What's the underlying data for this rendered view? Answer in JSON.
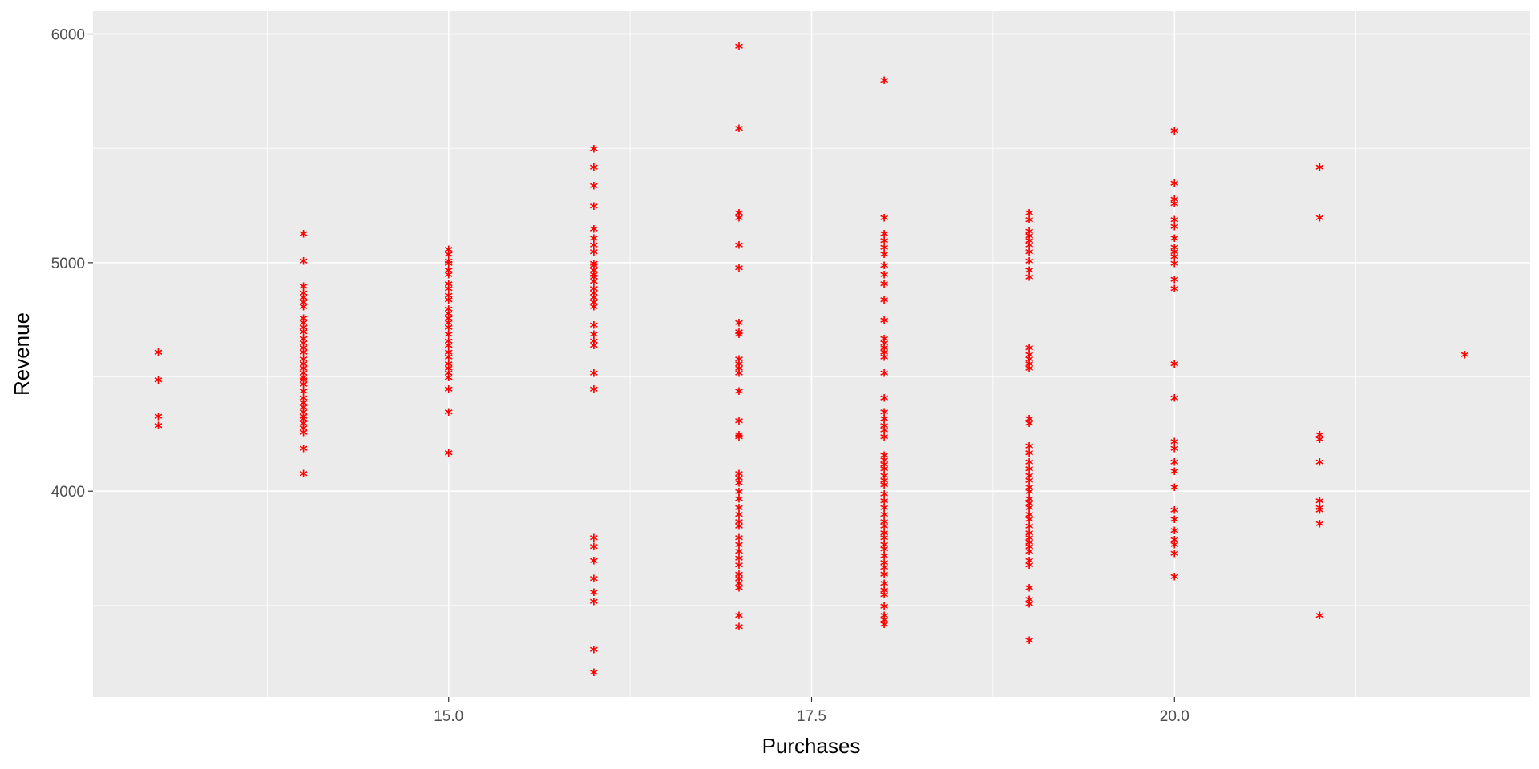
{
  "chart_data": {
    "type": "scatter",
    "xlabel": "Purchases",
    "ylabel": "Revenue",
    "xlim": [
      12.55,
      22.45
    ],
    "ylim": [
      3100,
      6100
    ],
    "x_ticks": [
      15.0,
      17.5,
      20.0
    ],
    "x_tick_labels": [
      "15.0",
      "17.5",
      "20.0"
    ],
    "y_ticks": [
      4000,
      5000,
      6000
    ],
    "y_tick_labels": [
      "4000",
      "5000",
      "6000"
    ],
    "grid": true,
    "marker": "asterisk",
    "point_color": "#ff0000",
    "panel_color": "#ebebeb",
    "series": [
      {
        "x": 13,
        "y": [
          4610,
          4490,
          4330,
          4290
        ]
      },
      {
        "x": 14,
        "y": [
          5130,
          5010,
          4900,
          4870,
          4850,
          4830,
          4810,
          4760,
          4740,
          4720,
          4700,
          4670,
          4650,
          4630,
          4610,
          4580,
          4560,
          4540,
          4520,
          4500,
          4490,
          4470,
          4440,
          4410,
          4390,
          4370,
          4350,
          4330,
          4320,
          4300,
          4280,
          4260,
          4190,
          4080
        ]
      },
      {
        "x": 15,
        "y": [
          5060,
          5040,
          5010,
          5000,
          4970,
          4950,
          4910,
          4890,
          4860,
          4840,
          4800,
          4780,
          4760,
          4740,
          4720,
          4690,
          4660,
          4640,
          4610,
          4590,
          4560,
          4540,
          4520,
          4500,
          4450,
          4350,
          4170
        ]
      },
      {
        "x": 16,
        "y": [
          5500,
          5420,
          5340,
          5250,
          5150,
          5110,
          5080,
          5050,
          5000,
          4990,
          4970,
          4950,
          4940,
          4920,
          4890,
          4870,
          4850,
          4830,
          4810,
          4730,
          4690,
          4660,
          4640,
          4520,
          4450,
          3800,
          3760,
          3700,
          3620,
          3560,
          3520,
          3310,
          3210
        ]
      },
      {
        "x": 17,
        "y": [
          5950,
          5590,
          5220,
          5200,
          5080,
          4980,
          4740,
          4700,
          4690,
          4580,
          4560,
          4540,
          4520,
          4440,
          4310,
          4250,
          4240,
          4080,
          4060,
          4040,
          4000,
          3970,
          3930,
          3900,
          3870,
          3850,
          3800,
          3770,
          3740,
          3710,
          3680,
          3640,
          3620,
          3600,
          3580,
          3460,
          3410
        ]
      },
      {
        "x": 18,
        "y": [
          5800,
          5200,
          5130,
          5100,
          5070,
          5040,
          4990,
          4950,
          4910,
          4840,
          4750,
          4670,
          4650,
          4630,
          4610,
          4590,
          4520,
          4410,
          4350,
          4320,
          4290,
          4270,
          4240,
          4160,
          4140,
          4120,
          4100,
          4070,
          4050,
          4030,
          3990,
          3960,
          3930,
          3900,
          3870,
          3850,
          3820,
          3800,
          3770,
          3750,
          3720,
          3690,
          3670,
          3640,
          3600,
          3570,
          3550,
          3500,
          3460,
          3440,
          3420
        ]
      },
      {
        "x": 19,
        "y": [
          5220,
          5190,
          5140,
          5120,
          5100,
          5080,
          5050,
          5010,
          4970,
          4940,
          4630,
          4600,
          4580,
          4560,
          4540,
          4320,
          4300,
          4200,
          4170,
          4130,
          4100,
          4070,
          4050,
          4020,
          4000,
          3970,
          3950,
          3930,
          3900,
          3880,
          3850,
          3820,
          3800,
          3780,
          3760,
          3740,
          3700,
          3680,
          3580,
          3530,
          3510,
          3350
        ]
      },
      {
        "x": 20,
        "y": [
          5580,
          5350,
          5280,
          5260,
          5190,
          5160,
          5110,
          5070,
          5050,
          5030,
          5000,
          4930,
          4890,
          4560,
          4410,
          4220,
          4190,
          4130,
          4090,
          4020,
          3920,
          3880,
          3830,
          3790,
          3770,
          3730,
          3630
        ]
      },
      {
        "x": 21,
        "y": [
          5420,
          5200,
          4250,
          4230,
          4130,
          3960,
          3930,
          3920,
          3860,
          3460
        ]
      },
      {
        "x": 22,
        "y": [
          4600
        ]
      }
    ]
  }
}
